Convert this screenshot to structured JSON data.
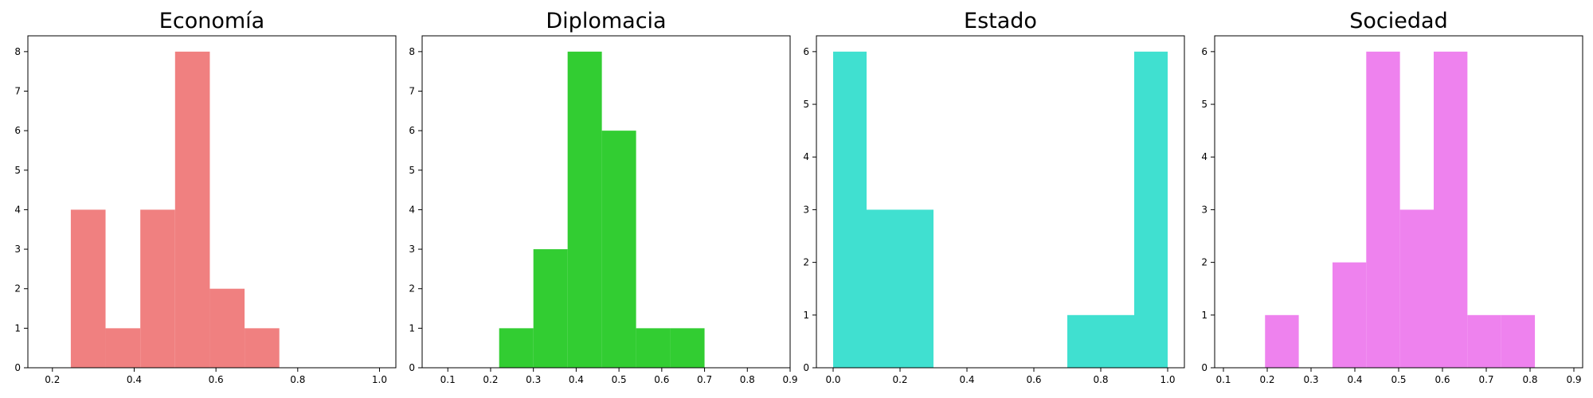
{
  "chart_data": [
    {
      "type": "bar",
      "title": "Economía",
      "color": "#f08080",
      "xlim": [
        0.14,
        1.04
      ],
      "ylim": [
        0,
        8.4
      ],
      "xticks": [
        0.2,
        0.4,
        0.6,
        0.8,
        1.0
      ],
      "xtick_labels": [
        "0.2",
        "0.4",
        "0.6",
        "0.8",
        "1.0"
      ],
      "yticks": [
        0,
        1,
        2,
        3,
        4,
        5,
        6,
        7,
        8
      ],
      "ytick_labels": [
        "0",
        "1",
        "2",
        "3",
        "4",
        "5",
        "6",
        "7",
        "8"
      ],
      "bins": [
        {
          "x0": 0.245,
          "x1": 0.33,
          "count": 4
        },
        {
          "x0": 0.33,
          "x1": 0.415,
          "count": 1
        },
        {
          "x0": 0.415,
          "x1": 0.5,
          "count": 4
        },
        {
          "x0": 0.5,
          "x1": 0.585,
          "count": 8
        },
        {
          "x0": 0.585,
          "x1": 0.67,
          "count": 2
        },
        {
          "x0": 0.67,
          "x1": 0.755,
          "count": 1
        }
      ]
    },
    {
      "type": "bar",
      "title": "Diplomacia",
      "color": "#32cd32",
      "xlim": [
        0.04,
        0.9
      ],
      "ylim": [
        0,
        8.4
      ],
      "xticks": [
        0.1,
        0.2,
        0.3,
        0.4,
        0.5,
        0.6,
        0.7,
        0.8,
        0.9
      ],
      "xtick_labels": [
        "0.1",
        "0.2",
        "0.3",
        "0.4",
        "0.5",
        "0.6",
        "0.7",
        "0.8",
        "0.9"
      ],
      "yticks": [
        0,
        1,
        2,
        3,
        4,
        5,
        6,
        7,
        8
      ],
      "ytick_labels": [
        "0",
        "1",
        "2",
        "3",
        "4",
        "5",
        "6",
        "7",
        "8"
      ],
      "bins": [
        {
          "x0": 0.22,
          "x1": 0.3,
          "count": 1
        },
        {
          "x0": 0.3,
          "x1": 0.38,
          "count": 3
        },
        {
          "x0": 0.38,
          "x1": 0.46,
          "count": 8
        },
        {
          "x0": 0.46,
          "x1": 0.54,
          "count": 6
        },
        {
          "x0": 0.54,
          "x1": 0.62,
          "count": 1
        },
        {
          "x0": 0.62,
          "x1": 0.7,
          "count": 1
        }
      ]
    },
    {
      "type": "bar",
      "title": "Estado",
      "color": "#40e0d0",
      "xlim": [
        -0.05,
        1.05
      ],
      "ylim": [
        0,
        6.3
      ],
      "xticks": [
        0.0,
        0.2,
        0.4,
        0.6,
        0.8,
        1.0
      ],
      "xtick_labels": [
        "0.0",
        "0.2",
        "0.4",
        "0.6",
        "0.8",
        "1.0"
      ],
      "yticks": [
        0,
        1,
        2,
        3,
        4,
        5,
        6
      ],
      "ytick_labels": [
        "0",
        "1",
        "2",
        "3",
        "4",
        "5",
        "6"
      ],
      "bins": [
        {
          "x0": 0.0,
          "x1": 0.1,
          "count": 6
        },
        {
          "x0": 0.1,
          "x1": 0.2,
          "count": 3
        },
        {
          "x0": 0.2,
          "x1": 0.3,
          "count": 3
        },
        {
          "x0": 0.7,
          "x1": 0.8,
          "count": 1
        },
        {
          "x0": 0.8,
          "x1": 0.9,
          "count": 1
        },
        {
          "x0": 0.9,
          "x1": 1.0,
          "count": 6
        }
      ]
    },
    {
      "type": "bar",
      "title": "Sociedad",
      "color": "#ee82ee",
      "xlim": [
        0.08,
        0.92
      ],
      "ylim": [
        0,
        6.3
      ],
      "xticks": [
        0.1,
        0.2,
        0.3,
        0.4,
        0.5,
        0.6,
        0.7,
        0.8,
        0.9
      ],
      "xtick_labels": [
        "0.1",
        "0.2",
        "0.3",
        "0.4",
        "0.5",
        "0.6",
        "0.7",
        "0.8",
        "0.9"
      ],
      "yticks": [
        0,
        1,
        2,
        3,
        4,
        5,
        6
      ],
      "ytick_labels": [
        "0",
        "1",
        "2",
        "3",
        "4",
        "5",
        "6"
      ],
      "bins": [
        {
          "x0": 0.195,
          "x1": 0.272,
          "count": 1
        },
        {
          "x0": 0.349,
          "x1": 0.426,
          "count": 2
        },
        {
          "x0": 0.426,
          "x1": 0.503,
          "count": 6
        },
        {
          "x0": 0.503,
          "x1": 0.58,
          "count": 3
        },
        {
          "x0": 0.58,
          "x1": 0.657,
          "count": 6
        },
        {
          "x0": 0.657,
          "x1": 0.734,
          "count": 1
        },
        {
          "x0": 0.734,
          "x1": 0.811,
          "count": 1
        }
      ]
    }
  ]
}
